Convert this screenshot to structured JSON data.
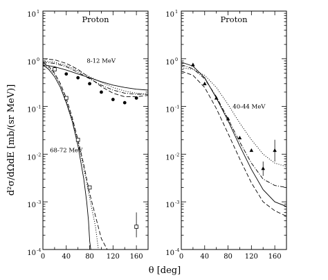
{
  "figure": {
    "ylabel": "d²σ/dΩdE [mb/(sr MeV)]",
    "xlabel": "θ [deg]"
  },
  "chart_data": [
    {
      "type": "line",
      "title": "Proton",
      "xlim": [
        0,
        180
      ],
      "ylim": [
        0.0001,
        10
      ],
      "yscale": "log",
      "grid": false,
      "xticks": [
        "0",
        "40",
        "80",
        "120",
        "160"
      ],
      "yticks": [
        {
          "base": "10",
          "exp": "-4"
        },
        {
          "base": "10",
          "exp": "-3"
        },
        {
          "base": "10",
          "exp": "-2"
        },
        {
          "base": "10",
          "exp": "-1"
        },
        {
          "base": "10",
          "exp": "0"
        },
        {
          "base": "10",
          "exp": "1"
        }
      ],
      "annotations": [
        {
          "text": "8-12 MeV",
          "x": 75,
          "y": 0.82
        },
        {
          "text": "68-72 MeV",
          "x": 12,
          "y": 0.011
        }
      ],
      "series": [
        {
          "group": "8-12 MeV",
          "style": "solid",
          "x": [
            0,
            20,
            40,
            60,
            80,
            100,
            120,
            140,
            160,
            180
          ],
          "y": [
            0.75,
            0.68,
            0.58,
            0.48,
            0.4,
            0.33,
            0.28,
            0.25,
            0.23,
            0.22
          ]
        },
        {
          "group": "8-12 MeV",
          "style": "dashed",
          "x": [
            0,
            20,
            40,
            60,
            80,
            100,
            120,
            140,
            160,
            180
          ],
          "y": [
            1.0,
            0.95,
            0.8,
            0.6,
            0.4,
            0.26,
            0.19,
            0.16,
            0.16,
            0.17
          ]
        },
        {
          "group": "8-12 MeV",
          "style": "dotted",
          "x": [
            0,
            20,
            40,
            60,
            80,
            100,
            120,
            140,
            160,
            180
          ],
          "y": [
            0.9,
            0.85,
            0.72,
            0.56,
            0.42,
            0.32,
            0.25,
            0.21,
            0.19,
            0.18
          ]
        },
        {
          "group": "8-12 MeV",
          "style": "dashdot",
          "x": [
            0,
            20,
            40,
            60,
            80,
            100,
            120,
            140,
            160,
            180
          ],
          "y": [
            0.85,
            0.8,
            0.68,
            0.52,
            0.38,
            0.28,
            0.22,
            0.19,
            0.18,
            0.18
          ]
        },
        {
          "group": "8-12 MeV",
          "style": "markers-filled-circle",
          "x": [
            20,
            40,
            60,
            80,
            100,
            120,
            140,
            160
          ],
          "y": [
            0.62,
            0.48,
            0.4,
            0.3,
            0.2,
            0.14,
            0.12,
            0.15
          ]
        },
        {
          "group": "68-72 MeV",
          "style": "solid",
          "x": [
            0,
            10,
            20,
            30,
            40,
            50,
            60,
            70,
            75,
            78,
            80,
            82
          ],
          "y": [
            0.75,
            0.6,
            0.42,
            0.25,
            0.12,
            0.05,
            0.015,
            0.003,
            0.001,
            0.0004,
            0.00015,
            0.0001
          ]
        },
        {
          "group": "68-72 MeV",
          "style": "dashed",
          "x": [
            0,
            10,
            20,
            30,
            40,
            50,
            60,
            70,
            80,
            90,
            100,
            110
          ],
          "y": [
            0.85,
            0.7,
            0.5,
            0.3,
            0.15,
            0.06,
            0.02,
            0.006,
            0.0015,
            0.0005,
            0.00017,
            0.0001
          ]
        },
        {
          "group": "68-72 MeV",
          "style": "dotted",
          "x": [
            0,
            10,
            20,
            30,
            40,
            50,
            60,
            70,
            80,
            90,
            95
          ],
          "y": [
            0.8,
            0.65,
            0.47,
            0.28,
            0.13,
            0.055,
            0.018,
            0.005,
            0.0012,
            0.0003,
            0.0001
          ]
        },
        {
          "group": "68-72 MeV",
          "style": "markers-open-square",
          "x": [
            20,
            40,
            60,
            80,
            160
          ],
          "y": [
            0.6,
            0.15,
            0.02,
            0.002,
            0.0003
          ],
          "yerr_low": [
            null,
            null,
            null,
            null,
            0.00018
          ],
          "yerr_high": [
            null,
            null,
            null,
            null,
            0.0006
          ]
        }
      ]
    },
    {
      "type": "line",
      "title": "Proton",
      "xlim": [
        0,
        180
      ],
      "ylim": [
        0.0001,
        10
      ],
      "yscale": "log",
      "grid": false,
      "xticks": [
        "0",
        "40",
        "80",
        "120",
        "160"
      ],
      "yticks": [
        {
          "base": "10",
          "exp": "-4"
        },
        {
          "base": "10",
          "exp": "-3"
        },
        {
          "base": "10",
          "exp": "-2"
        },
        {
          "base": "10",
          "exp": "-1"
        },
        {
          "base": "10",
          "exp": "0"
        },
        {
          "base": "10",
          "exp": "1"
        }
      ],
      "annotations": [
        {
          "text": "40-44 MeV",
          "x": 88,
          "y": 0.09
        }
      ],
      "series": [
        {
          "group": "40-44 MeV",
          "style": "solid",
          "x": [
            0,
            20,
            40,
            60,
            80,
            100,
            120,
            140,
            160,
            180
          ],
          "y": [
            0.85,
            0.7,
            0.4,
            0.15,
            0.05,
            0.015,
            0.0048,
            0.0018,
            0.001,
            0.0008
          ]
        },
        {
          "group": "40-44 MeV",
          "style": "dashed",
          "x": [
            0,
            20,
            40,
            60,
            80,
            100,
            120,
            140,
            160,
            180
          ],
          "y": [
            0.55,
            0.45,
            0.25,
            0.09,
            0.027,
            0.008,
            0.0025,
            0.001,
            0.00065,
            0.0005
          ]
        },
        {
          "group": "40-44 MeV",
          "style": "dotted",
          "x": [
            0,
            20,
            40,
            60,
            80,
            100,
            120,
            140,
            160,
            180
          ],
          "y": [
            0.65,
            0.6,
            0.45,
            0.25,
            0.11,
            0.045,
            0.02,
            0.01,
            0.0065,
            0.0055
          ]
        },
        {
          "group": "40-44 MeV",
          "style": "dashdot",
          "x": [
            0,
            20,
            40,
            60,
            80,
            100,
            120,
            140,
            160,
            180
          ],
          "y": [
            0.75,
            0.62,
            0.38,
            0.16,
            0.055,
            0.018,
            0.0065,
            0.003,
            0.0022,
            0.002
          ]
        },
        {
          "group": "40-44 MeV",
          "style": "markers-filled-triangle",
          "x": [
            20,
            40,
            60,
            80,
            100,
            120,
            140,
            160
          ],
          "y": [
            0.75,
            0.3,
            0.15,
            0.055,
            0.022,
            0.012,
            0.005,
            0.012
          ],
          "yerr_low": [
            null,
            null,
            null,
            null,
            null,
            null,
            0.0035,
            0.007
          ],
          "yerr_high": [
            null,
            null,
            null,
            null,
            null,
            null,
            0.007,
            0.02
          ]
        }
      ]
    }
  ]
}
